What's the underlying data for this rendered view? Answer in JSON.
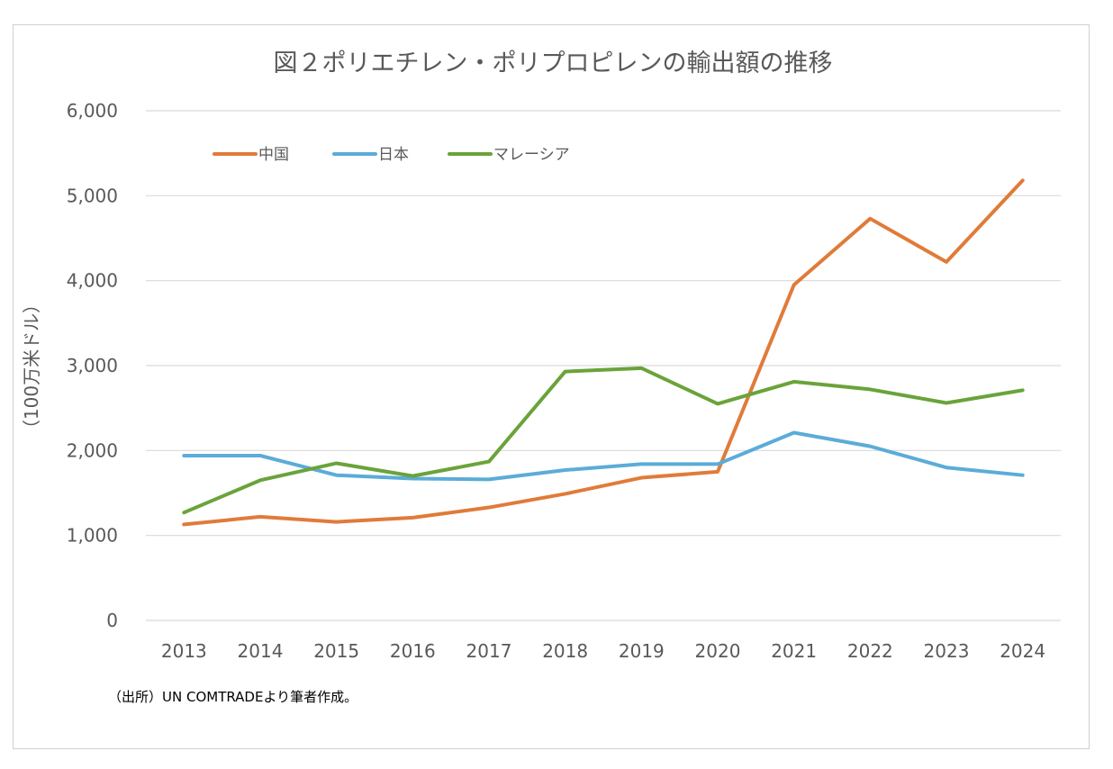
{
  "chart_data": {
    "type": "line",
    "title": "図２ポリエチレン・ポリプロピレンの輸出額の推移",
    "ylabel": "（100万米ドル）",
    "xlabel": "",
    "x": [
      "2013",
      "2014",
      "2015",
      "2016",
      "2017",
      "2018",
      "2019",
      "2020",
      "2021",
      "2022",
      "2023",
      "2024"
    ],
    "ylim": [
      0,
      6000
    ],
    "yticks": [
      0,
      1000,
      2000,
      3000,
      4000,
      5000,
      6000
    ],
    "ytick_labels": [
      "0",
      "1,000",
      "2,000",
      "3,000",
      "4,000",
      "5,000",
      "6,000"
    ],
    "grid": true,
    "legend_position": "top-left",
    "series": [
      {
        "name": "中国",
        "color": "#E07B39",
        "values": [
          1130,
          1220,
          1160,
          1210,
          1330,
          1490,
          1680,
          1750,
          3950,
          4730,
          4220,
          5180
        ]
      },
      {
        "name": "日本",
        "color": "#5BACD8",
        "values": [
          1940,
          1940,
          1710,
          1670,
          1660,
          1770,
          1840,
          1840,
          2210,
          2050,
          1800,
          1710
        ]
      },
      {
        "name": "マレーシア",
        "color": "#6AA33A",
        "values": [
          1270,
          1650,
          1850,
          1700,
          1870,
          2930,
          2970,
          2550,
          2810,
          2720,
          2560,
          2710
        ]
      }
    ]
  },
  "source_note": "（出所）UN COMTRADEより筆者作成。"
}
